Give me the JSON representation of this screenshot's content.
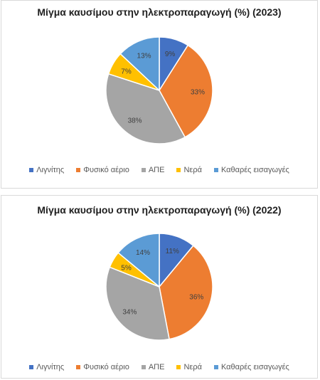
{
  "chart_data": [
    {
      "type": "pie",
      "title": "Μίγμα καυσίμου στην ηλεκτροπαραγωγή (%) (2023)",
      "categories": [
        "Λιγνίτης",
        "Φυσικό αέριο",
        "ΑΠΕ",
        "Νερά",
        "Καθαρές εισαγωγές"
      ],
      "values": [
        9,
        33,
        38,
        7,
        13
      ],
      "labels": [
        "9%",
        "33%",
        "38%",
        "7%",
        "13%"
      ],
      "colors": [
        "#4472c4",
        "#ed7d31",
        "#a5a5a5",
        "#ffc000",
        "#5b9bd5"
      ],
      "legend_position": "bottom"
    },
    {
      "type": "pie",
      "title": "Μίγμα καυσίμου στην ηλεκτροπαραγωγή (%) (2022)",
      "categories": [
        "Λιγνίτης",
        "Φυσικό αέριο",
        "ΑΠΕ",
        "Νερά",
        "Καθαρές εισαγωγές"
      ],
      "values": [
        11,
        36,
        34,
        5,
        14
      ],
      "labels": [
        "11%",
        "36%",
        "34%",
        "5%",
        "14%"
      ],
      "colors": [
        "#4472c4",
        "#ed7d31",
        "#a5a5a5",
        "#ffc000",
        "#5b9bd5"
      ],
      "legend_position": "bottom"
    }
  ]
}
